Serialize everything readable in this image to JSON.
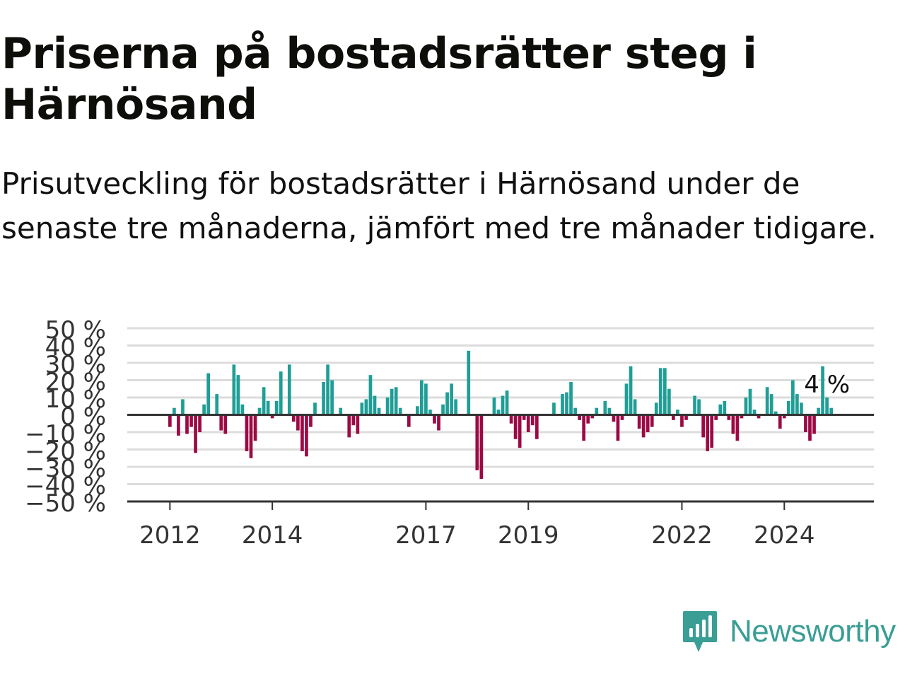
{
  "title": "Priserna på bostadsrätter steg i Härnösand",
  "subtitle": "Prisutveckling för bostadsrätter i Härnösand under de senaste tre månaderna, jämfört med tre månader tidigare.",
  "brand": {
    "name": "Newsworthy",
    "icon": "newsworthy-logo-icon",
    "color": "#3a9e95"
  },
  "colors": {
    "positive": "#1f9e96",
    "negative": "#9b0a45",
    "grid": "#dcdcdc",
    "axis": "#333333"
  },
  "chart_data": {
    "type": "bar",
    "xlabel": "",
    "ylabel": "",
    "ylim": [
      -50,
      50
    ],
    "y_ticks": [
      50,
      40,
      30,
      20,
      10,
      0,
      -10,
      -20,
      -30,
      -40,
      -50
    ],
    "y_tick_labels": [
      "50 %",
      "40 %",
      "30 %",
      "20 %",
      "10 %",
      "0 %",
      "−10 %",
      "−20 %",
      "−30 %",
      "−40 %",
      "−50 %"
    ],
    "x_ticks": [
      "2012",
      "2014",
      "2017",
      "2019",
      "2022",
      "2024"
    ],
    "x_range": [
      "2011-03",
      "2025-10"
    ],
    "annotation": {
      "date": "2024-12",
      "label": "4 %"
    },
    "grid": true,
    "series": [
      {
        "values": [
          [
            "2012-01",
            -7
          ],
          [
            "2012-02",
            4
          ],
          [
            "2012-03",
            -12
          ],
          [
            "2012-04",
            9
          ],
          [
            "2012-05",
            -11
          ],
          [
            "2012-06",
            -7
          ],
          [
            "2012-07",
            -22
          ],
          [
            "2012-08",
            -10
          ],
          [
            "2012-09",
            6
          ],
          [
            "2012-10",
            24
          ],
          [
            "2012-12",
            12
          ],
          [
            "2013-01",
            -9
          ],
          [
            "2013-02",
            -11
          ],
          [
            "2013-04",
            29
          ],
          [
            "2013-05",
            23
          ],
          [
            "2013-06",
            6
          ],
          [
            "2013-07",
            -21
          ],
          [
            "2013-08",
            -25
          ],
          [
            "2013-09",
            -15
          ],
          [
            "2013-10",
            4
          ],
          [
            "2013-11",
            16
          ],
          [
            "2013-12",
            8
          ],
          [
            "2014-01",
            -2
          ],
          [
            "2014-02",
            8
          ],
          [
            "2014-03",
            25
          ],
          [
            "2014-05",
            29
          ],
          [
            "2014-06",
            -4
          ],
          [
            "2014-07",
            -9
          ],
          [
            "2014-08",
            -21
          ],
          [
            "2014-09",
            -24
          ],
          [
            "2014-10",
            -7
          ],
          [
            "2014-11",
            7
          ],
          [
            "2015-01",
            19
          ],
          [
            "2015-02",
            29
          ],
          [
            "2015-03",
            20
          ],
          [
            "2015-05",
            4
          ],
          [
            "2015-07",
            -13
          ],
          [
            "2015-08",
            -6
          ],
          [
            "2015-09",
            -11
          ],
          [
            "2015-10",
            7
          ],
          [
            "2015-11",
            9
          ],
          [
            "2015-12",
            23
          ],
          [
            "2016-01",
            11
          ],
          [
            "2016-02",
            4
          ],
          [
            "2016-04",
            10
          ],
          [
            "2016-05",
            15
          ],
          [
            "2016-06",
            16
          ],
          [
            "2016-07",
            4
          ],
          [
            "2016-09",
            -7
          ],
          [
            "2016-11",
            5
          ],
          [
            "2016-12",
            20
          ],
          [
            "2017-01",
            18
          ],
          [
            "2017-02",
            3
          ],
          [
            "2017-03",
            -5
          ],
          [
            "2017-04",
            -9
          ],
          [
            "2017-05",
            6
          ],
          [
            "2017-06",
            13
          ],
          [
            "2017-07",
            18
          ],
          [
            "2017-08",
            9
          ],
          [
            "2017-11",
            37
          ],
          [
            "2018-01",
            -32
          ],
          [
            "2018-02",
            -37
          ],
          [
            "2018-05",
            10
          ],
          [
            "2018-06",
            3
          ],
          [
            "2018-07",
            11
          ],
          [
            "2018-08",
            14
          ],
          [
            "2018-09",
            -5
          ],
          [
            "2018-10",
            -14
          ],
          [
            "2018-11",
            -19
          ],
          [
            "2018-12",
            -3
          ],
          [
            "2019-01",
            -10
          ],
          [
            "2019-02",
            -6
          ],
          [
            "2019-03",
            -14
          ],
          [
            "2019-07",
            7
          ],
          [
            "2019-09",
            12
          ],
          [
            "2019-10",
            13
          ],
          [
            "2019-11",
            19
          ],
          [
            "2019-12",
            4
          ],
          [
            "2020-01",
            -3
          ],
          [
            "2020-02",
            -15
          ],
          [
            "2020-03",
            -5
          ],
          [
            "2020-04",
            -2
          ],
          [
            "2020-05",
            4
          ],
          [
            "2020-07",
            8
          ],
          [
            "2020-08",
            4
          ],
          [
            "2020-09",
            -4
          ],
          [
            "2020-10",
            -15
          ],
          [
            "2020-11",
            -3
          ],
          [
            "2020-12",
            18
          ],
          [
            "2021-01",
            28
          ],
          [
            "2021-02",
            9
          ],
          [
            "2021-03",
            -8
          ],
          [
            "2021-04",
            -13
          ],
          [
            "2021-05",
            -10
          ],
          [
            "2021-06",
            -7
          ],
          [
            "2021-07",
            7
          ],
          [
            "2021-08",
            27
          ],
          [
            "2021-09",
            27
          ],
          [
            "2021-10",
            15
          ],
          [
            "2021-11",
            -3
          ],
          [
            "2021-12",
            3
          ],
          [
            "2022-01",
            -7
          ],
          [
            "2022-02",
            -3
          ],
          [
            "2022-04",
            11
          ],
          [
            "2022-05",
            9
          ],
          [
            "2022-06",
            -13
          ],
          [
            "2022-07",
            -21
          ],
          [
            "2022-08",
            -19
          ],
          [
            "2022-09",
            -3
          ],
          [
            "2022-10",
            6
          ],
          [
            "2022-11",
            8
          ],
          [
            "2022-12",
            -3
          ],
          [
            "2023-01",
            -11
          ],
          [
            "2023-02",
            -15
          ],
          [
            "2023-03",
            -2
          ],
          [
            "2023-04",
            10
          ],
          [
            "2023-05",
            15
          ],
          [
            "2023-06",
            3
          ],
          [
            "2023-07",
            -2
          ],
          [
            "2023-09",
            16
          ],
          [
            "2023-10",
            12
          ],
          [
            "2023-11",
            2
          ],
          [
            "2023-12",
            -8
          ],
          [
            "2024-01",
            -2
          ],
          [
            "2024-02",
            8
          ],
          [
            "2024-03",
            20
          ],
          [
            "2024-04",
            12
          ],
          [
            "2024-05",
            7
          ],
          [
            "2024-06",
            -10
          ],
          [
            "2024-07",
            -15
          ],
          [
            "2024-08",
            -11
          ],
          [
            "2024-09",
            4
          ],
          [
            "2024-10",
            28
          ],
          [
            "2024-11",
            10
          ],
          [
            "2024-12",
            4
          ]
        ]
      }
    ]
  }
}
